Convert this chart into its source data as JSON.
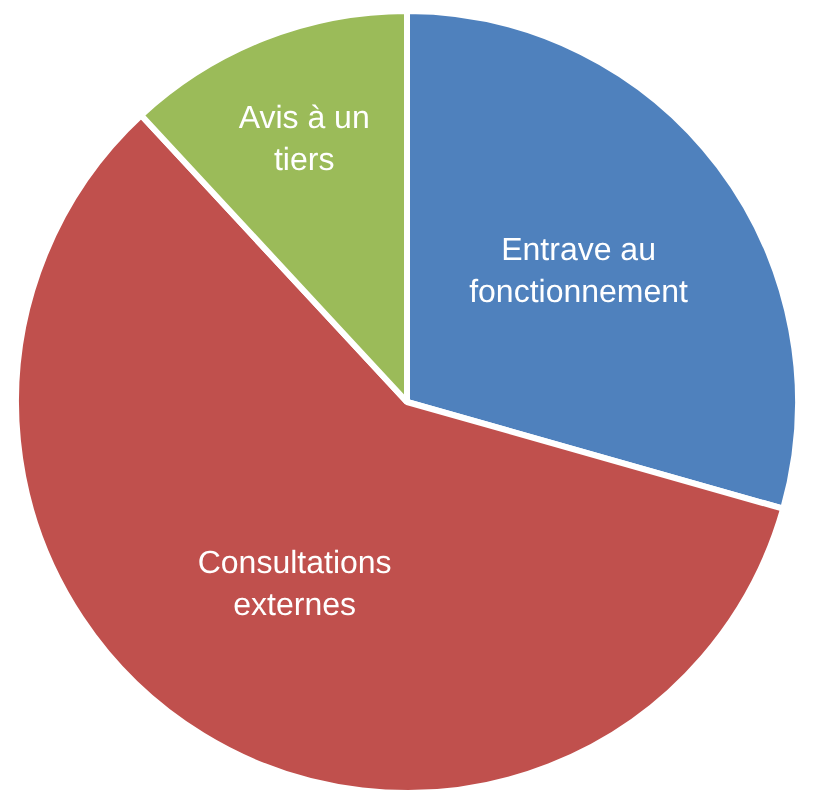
{
  "chart_data": {
    "type": "pie",
    "categories": [
      "Entrave au fonctionnement",
      "Consultations externes",
      "Avis à un tiers"
    ],
    "values": [
      29.4,
      58.7,
      11.9
    ],
    "colors": [
      "#4f81bd",
      "#c0504d",
      "#9bbb59"
    ],
    "legend": false
  }
}
